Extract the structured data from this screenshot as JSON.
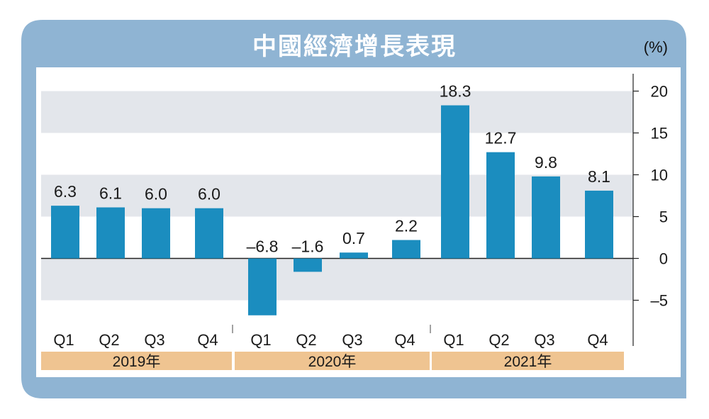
{
  "title": "中國經濟增長表現",
  "unit": "(%)",
  "colors": {
    "frame": "#8fb4d3",
    "bar": "#1b8dbf",
    "band": "#e3e6eb",
    "year_band": "#efc491"
  },
  "chart_data": {
    "type": "bar",
    "title": "中國經濟增長表現",
    "ylabel": "(%)",
    "ylim": [
      -8.5,
      22
    ],
    "yticks": [
      20,
      15,
      10,
      5,
      0,
      -5
    ],
    "ytick_labels": [
      "20",
      "15",
      "10",
      "5",
      "0",
      "–5"
    ],
    "grid": "alternating bands",
    "groups": [
      {
        "label": "2019年",
        "categories": [
          "Q1",
          "Q2",
          "Q3",
          "Q4"
        ],
        "values": [
          6.3,
          6.1,
          6.0,
          6.0
        ],
        "value_labels": [
          "6.3",
          "6.1",
          "6.0",
          "6.0"
        ]
      },
      {
        "label": "2020年",
        "categories": [
          "Q1",
          "Q2",
          "Q3",
          "Q4"
        ],
        "values": [
          -6.8,
          -1.6,
          0.7,
          2.2
        ],
        "value_labels": [
          "–6.8",
          "–1.6",
          "0.7",
          "2.2"
        ]
      },
      {
        "label": "2021年",
        "categories": [
          "Q1",
          "Q2",
          "Q3",
          "Q4"
        ],
        "values": [
          18.3,
          12.7,
          9.8,
          8.1
        ],
        "value_labels": [
          "18.3",
          "12.7",
          "9.8",
          "8.1"
        ]
      }
    ]
  }
}
